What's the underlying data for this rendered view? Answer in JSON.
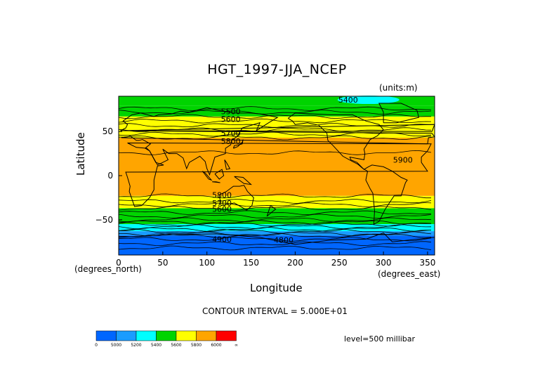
{
  "chart_data": {
    "type": "heatmap",
    "title": "HGT_1997-JJA_NCEP",
    "units_label": "(units:m)",
    "xlabel": "Longitude",
    "ylabel": "Latitude",
    "x_units": "(degrees_east)",
    "y_units": "(degrees_north)",
    "xlim": [
      0,
      358
    ],
    "ylim": [
      -90,
      90
    ],
    "x_ticks": [
      "0",
      "50",
      "100",
      "150",
      "200",
      "250",
      "300",
      "350"
    ],
    "y_ticks": [
      "50",
      "0",
      "−50"
    ],
    "contour_interval_text": "CONTOUR INTERVAL = 5.000E+01",
    "level_text": "level=500 millibar",
    "colorbar": {
      "colors": [
        "#0066ff",
        "#1a9cff",
        "#00ffff",
        "#00d400",
        "#ffff00",
        "#ffa500",
        "#ff0000"
      ],
      "labels": [
        "0",
        "5000",
        "5200",
        "5400",
        "5600",
        "5800",
        "6000",
        "∞"
      ]
    },
    "zonal_bands": [
      {
        "lat_from": 90,
        "lat_to": 79,
        "value_range": "5400-5600",
        "color": "#00d400"
      },
      {
        "lat_from": 79,
        "lat_to": 67,
        "value_range": "5400-5600",
        "color": "#00d400"
      },
      {
        "lat_from": 67,
        "lat_to": 43,
        "value_range": "5600-5800",
        "color": "#ffff00"
      },
      {
        "lat_from": 43,
        "lat_to": -23,
        "value_range": "5800-6000",
        "color": "#ffa500"
      },
      {
        "lat_from": -23,
        "lat_to": -37,
        "value_range": "5600-5800",
        "color": "#ffff00"
      },
      {
        "lat_from": -37,
        "lat_to": -55,
        "value_range": "5400-5600",
        "color": "#00d400"
      },
      {
        "lat_from": -55,
        "lat_to": -63,
        "value_range": "5200-5400",
        "color": "#00ffff"
      },
      {
        "lat_from": -63,
        "lat_to": -68,
        "value_range": "5000-5200",
        "color": "#1a9cff"
      },
      {
        "lat_from": -68,
        "lat_to": -90,
        "value_range": "0-5000",
        "color": "#0066ff"
      }
    ],
    "contour_labels": [
      {
        "text": "5400",
        "lon": 260,
        "lat": 86
      },
      {
        "text": "5500",
        "lon": 127,
        "lat": 73
      },
      {
        "text": "5600",
        "lon": 127,
        "lat": 64
      },
      {
        "text": "5700",
        "lon": 127,
        "lat": 48
      },
      {
        "text": "5800",
        "lon": 127,
        "lat": 39
      },
      {
        "text": "5900",
        "lon": 322,
        "lat": 18
      },
      {
        "text": "5800",
        "lon": 117,
        "lat": -22
      },
      {
        "text": "5700",
        "lon": 117,
        "lat": -31
      },
      {
        "text": "5600",
        "lon": 117,
        "lat": -38
      },
      {
        "text": "4900",
        "lon": 117,
        "lat": -72
      },
      {
        "text": "4800",
        "lon": 187,
        "lat": -73
      }
    ]
  }
}
